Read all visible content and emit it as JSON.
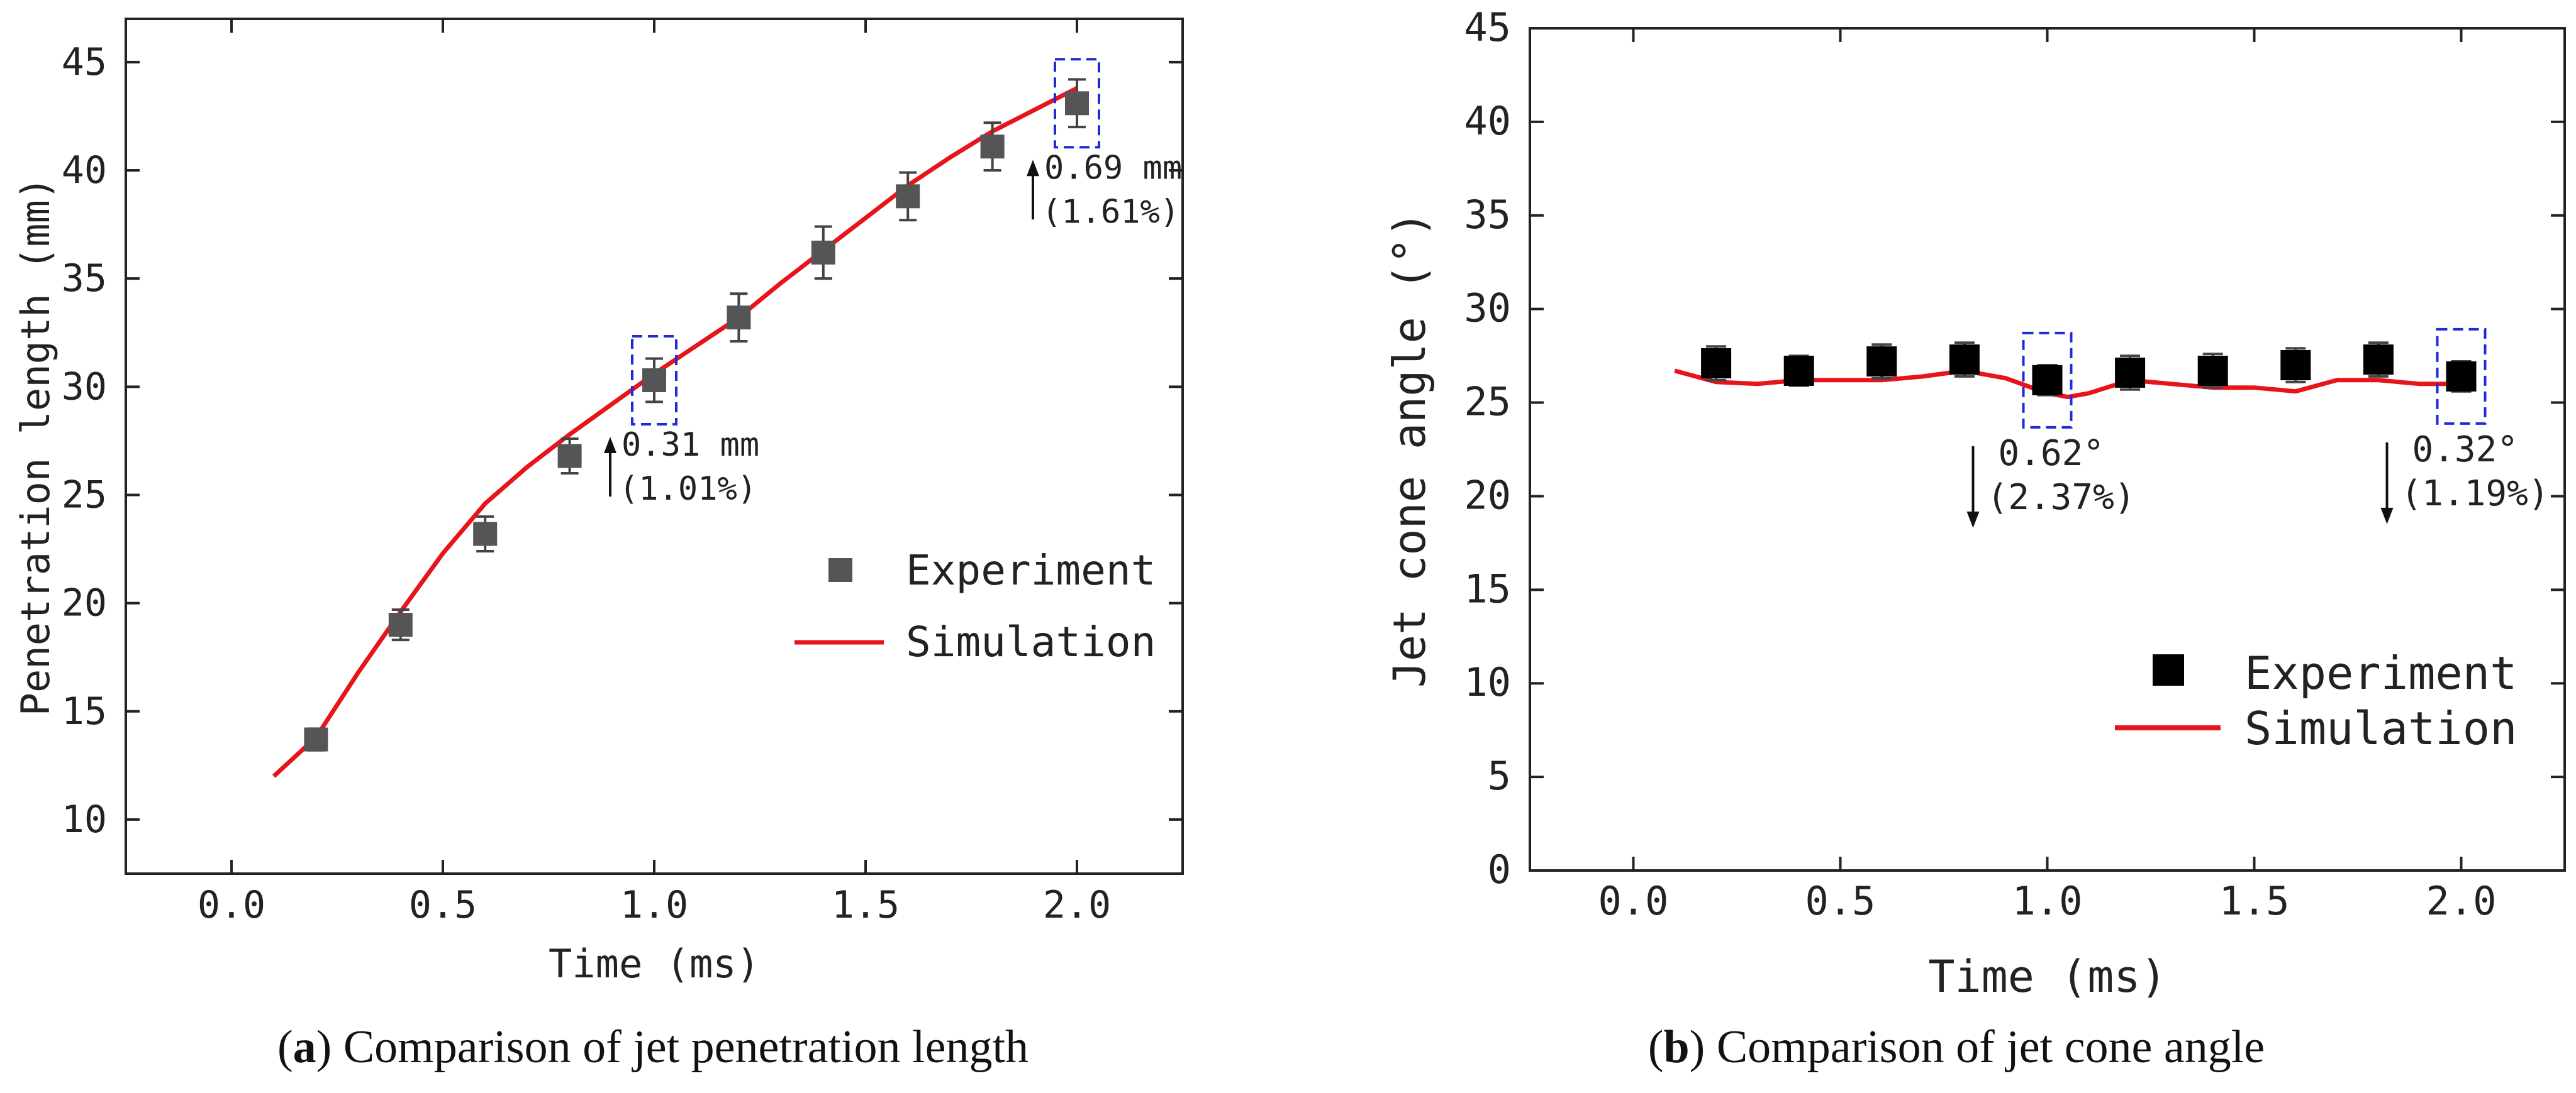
{
  "chart_data": [
    {
      "type": "scatter",
      "caption": {
        "letter": "a",
        "text": "Comparison of jet penetration length"
      },
      "xlabel": "Time (ms)",
      "ylabel": "Penetration length (mm)",
      "xlim": [
        -0.25,
        2.25
      ],
      "ylim": [
        7.5,
        47.0
      ],
      "xticks": [
        "0.0",
        "0.5",
        "1.0",
        "1.5",
        "2.0"
      ],
      "yticks": [
        "10",
        "15",
        "20",
        "25",
        "30",
        "35",
        "40",
        "45"
      ],
      "series": [
        {
          "name": "Experiment",
          "kind": "markers",
          "color": "#555555",
          "x": [
            0.2,
            0.4,
            0.6,
            0.8,
            1.0,
            1.2,
            1.4,
            1.6,
            1.8,
            2.0
          ],
          "y": [
            13.7,
            19.0,
            23.2,
            26.8,
            30.3,
            33.2,
            36.2,
            38.8,
            41.1,
            43.1
          ],
          "err": [
            0.5,
            0.7,
            0.8,
            0.8,
            1.0,
            1.1,
            1.2,
            1.1,
            1.1,
            1.1
          ]
        },
        {
          "name": "Simulation",
          "kind": "line",
          "color": "#e8141c",
          "x": [
            0.1,
            0.2,
            0.3,
            0.4,
            0.5,
            0.6,
            0.7,
            0.8,
            0.9,
            1.0,
            1.1,
            1.2,
            1.3,
            1.4,
            1.5,
            1.6,
            1.7,
            1.8,
            1.9,
            2.0
          ],
          "y": [
            12.0,
            13.8,
            16.8,
            19.6,
            22.3,
            24.6,
            26.3,
            27.8,
            29.2,
            30.6,
            31.9,
            33.2,
            34.8,
            36.3,
            37.8,
            39.3,
            40.6,
            41.8,
            42.8,
            43.8
          ]
        }
      ],
      "legend": {
        "position": "bottom-right",
        "entries": [
          "Experiment",
          "Simulation"
        ]
      },
      "annotations": [
        {
          "target_x": 1.0,
          "value": "0.31 mm",
          "percent": "(1.01%)",
          "arrow": "up"
        },
        {
          "target_x": 2.0,
          "value": "0.69 mm",
          "percent": "(1.61%)",
          "arrow": "up"
        }
      ]
    },
    {
      "type": "scatter",
      "caption": {
        "letter": "b",
        "text": "Comparison of jet cone angle"
      },
      "xlabel": "Time (ms)",
      "ylabel": "Jet cone angle (°)",
      "xlim": [
        -0.25,
        2.25
      ],
      "ylim": [
        0,
        45
      ],
      "xticks": [
        "0.0",
        "0.5",
        "1.0",
        "1.5",
        "2.0"
      ],
      "yticks": [
        "0",
        "5",
        "10",
        "15",
        "20",
        "25",
        "30",
        "35",
        "40",
        "45"
      ],
      "series": [
        {
          "name": "Experiment",
          "kind": "markers",
          "color": "#000000",
          "x": [
            0.2,
            0.4,
            0.6,
            0.8,
            1.0,
            1.2,
            1.4,
            1.6,
            1.8,
            2.0
          ],
          "y": [
            27.1,
            26.7,
            27.2,
            27.3,
            26.2,
            26.6,
            26.7,
            27.0,
            27.3,
            26.4
          ],
          "err": [
            0.9,
            0.8,
            0.9,
            0.9,
            0.8,
            0.9,
            0.9,
            0.9,
            0.9,
            0.8
          ]
        },
        {
          "name": "Simulation",
          "kind": "line",
          "color": "#e8141c",
          "x": [
            0.1,
            0.2,
            0.3,
            0.4,
            0.5,
            0.6,
            0.7,
            0.8,
            0.9,
            1.0,
            1.05,
            1.1,
            1.2,
            1.3,
            1.4,
            1.5,
            1.6,
            1.7,
            1.8,
            1.9,
            2.0
          ],
          "y": [
            26.7,
            26.1,
            26.0,
            26.2,
            26.2,
            26.2,
            26.4,
            26.7,
            26.3,
            25.5,
            25.3,
            25.5,
            26.2,
            26.0,
            25.8,
            25.8,
            25.6,
            26.2,
            26.2,
            26.0,
            26.0
          ]
        }
      ],
      "legend": {
        "position": "bottom-right",
        "entries": [
          "Experiment",
          "Simulation"
        ]
      },
      "annotations": [
        {
          "target_x": 1.0,
          "value": "0.62°",
          "percent": "(2.37%)",
          "arrow": "down"
        },
        {
          "target_x": 2.0,
          "value": "0.32°",
          "percent": "(1.19%)",
          "arrow": "down"
        }
      ]
    }
  ],
  "colors": {
    "highlight_box": "#1f2bd6",
    "axis": "#222222"
  }
}
